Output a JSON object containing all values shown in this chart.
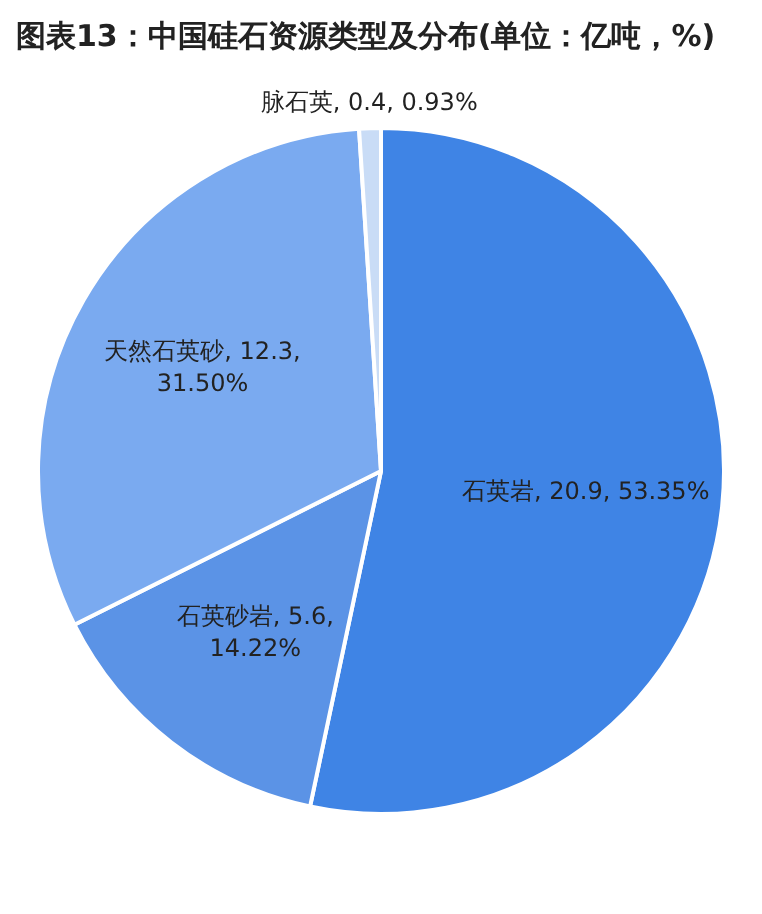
{
  "chart_data": {
    "type": "pie",
    "title": "图表13：中国硅石资源类型及分布(单位：亿吨，%)",
    "categories": [
      "石英岩",
      "石英砂岩",
      "天然石英砂",
      "脉石英"
    ],
    "values": [
      20.9,
      5.6,
      12.3,
      0.4
    ],
    "value_labels": [
      "20.9, 53.35%",
      "5.6, 14.22%",
      "12.3, 31.50%",
      "0.4, 0.93%"
    ],
    "colors": [
      "#3f84e5",
      "#5b93e6",
      "#7aaaf0",
      "#c9dcf6"
    ],
    "legend": false
  }
}
